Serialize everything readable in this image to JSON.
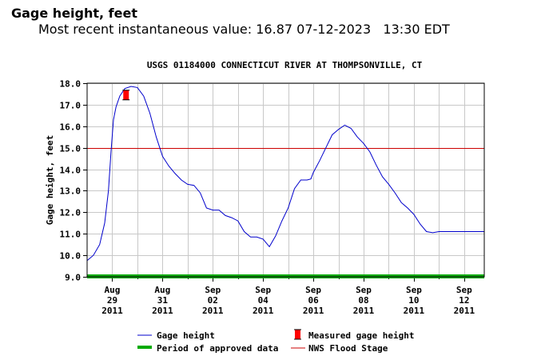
{
  "header": {
    "title": "Gage height, feet",
    "recent_label": "Most recent instantaneous value:",
    "recent_value": "16.87",
    "recent_date": "07-12-2023",
    "recent_time": "13:30 EDT"
  },
  "chart_data": {
    "type": "line",
    "title": "USGS 01184000 CONNECTICUT RIVER AT THOMPSONVILLE, CT",
    "ylabel": "Gage height, feet",
    "xlabel": "",
    "ylim": [
      9.0,
      18.0
    ],
    "yticks": [
      "9.0",
      "10.0",
      "11.0",
      "12.0",
      "13.0",
      "14.0",
      "15.0",
      "16.0",
      "17.0",
      "18.0"
    ],
    "xlim": [
      0,
      15.8
    ],
    "xticks": [
      {
        "x": 1,
        "line1": "Aug",
        "line2": "29",
        "line3": "2011"
      },
      {
        "x": 3,
        "line1": "Aug",
        "line2": "31",
        "line3": "2011"
      },
      {
        "x": 5,
        "line1": "Sep",
        "line2": "02",
        "line3": "2011"
      },
      {
        "x": 7,
        "line1": "Sep",
        "line2": "04",
        "line3": "2011"
      },
      {
        "x": 9,
        "line1": "Sep",
        "line2": "06",
        "line3": "2011"
      },
      {
        "x": 11,
        "line1": "Sep",
        "line2": "08",
        "line3": "2011"
      },
      {
        "x": 13,
        "line1": "Sep",
        "line2": "10",
        "line3": "2011"
      },
      {
        "x": 15,
        "line1": "Sep",
        "line2": "12",
        "line3": "2011"
      }
    ],
    "grid": true,
    "series": [
      {
        "name": "Gage height",
        "color": "#0000cc",
        "x": [
          0,
          0.25,
          0.5,
          0.7,
          0.85,
          0.95,
          1.05,
          1.15,
          1.3,
          1.5,
          1.75,
          2.0,
          2.25,
          2.5,
          2.75,
          3.0,
          3.25,
          3.5,
          3.75,
          4.0,
          4.25,
          4.5,
          4.75,
          5.0,
          5.25,
          5.5,
          5.75,
          6.0,
          6.25,
          6.5,
          6.75,
          7.0,
          7.25,
          7.5,
          7.75,
          8.0,
          8.25,
          8.5,
          8.75,
          8.9,
          9.0,
          9.25,
          9.5,
          9.75,
          10.0,
          10.25,
          10.5,
          10.75,
          11.0,
          11.25,
          11.5,
          11.75,
          12.0,
          12.25,
          12.5,
          12.75,
          13.0,
          13.25,
          13.5,
          13.75,
          14.0,
          14.25,
          14.5,
          14.75,
          15.0,
          15.25,
          15.5,
          15.75,
          15.8
        ],
        "values": [
          9.75,
          10.0,
          10.5,
          11.5,
          13.0,
          14.8,
          16.3,
          16.9,
          17.4,
          17.75,
          17.85,
          17.8,
          17.4,
          16.6,
          15.5,
          14.6,
          14.15,
          13.8,
          13.5,
          13.3,
          13.25,
          12.9,
          12.2,
          12.1,
          12.1,
          11.85,
          11.75,
          11.6,
          11.1,
          10.85,
          10.85,
          10.75,
          10.4,
          10.9,
          11.6,
          12.2,
          13.1,
          13.5,
          13.5,
          13.55,
          13.85,
          14.4,
          15.0,
          15.6,
          15.85,
          16.05,
          15.9,
          15.5,
          15.2,
          14.8,
          14.2,
          13.65,
          13.3,
          12.9,
          12.45,
          12.2,
          11.9,
          11.45,
          11.1,
          11.05,
          11.1,
          11.1,
          11.1,
          11.1,
          11.1,
          11.1,
          11.1,
          11.1,
          11.1
        ]
      },
      {
        "name": "Measured gage height",
        "color": "#ff0000",
        "x": [
          1.55
        ],
        "values": [
          17.45
        ]
      },
      {
        "name": "Period of approved data",
        "color": "#00aa00",
        "x": [
          0,
          15.8
        ],
        "values": [
          9.0,
          9.0
        ]
      },
      {
        "name": "NWS Flood Stage",
        "color": "#cc0000",
        "x": [
          0,
          15.8
        ],
        "values": [
          15.0,
          15.0
        ]
      }
    ],
    "legend_position": "bottom"
  }
}
